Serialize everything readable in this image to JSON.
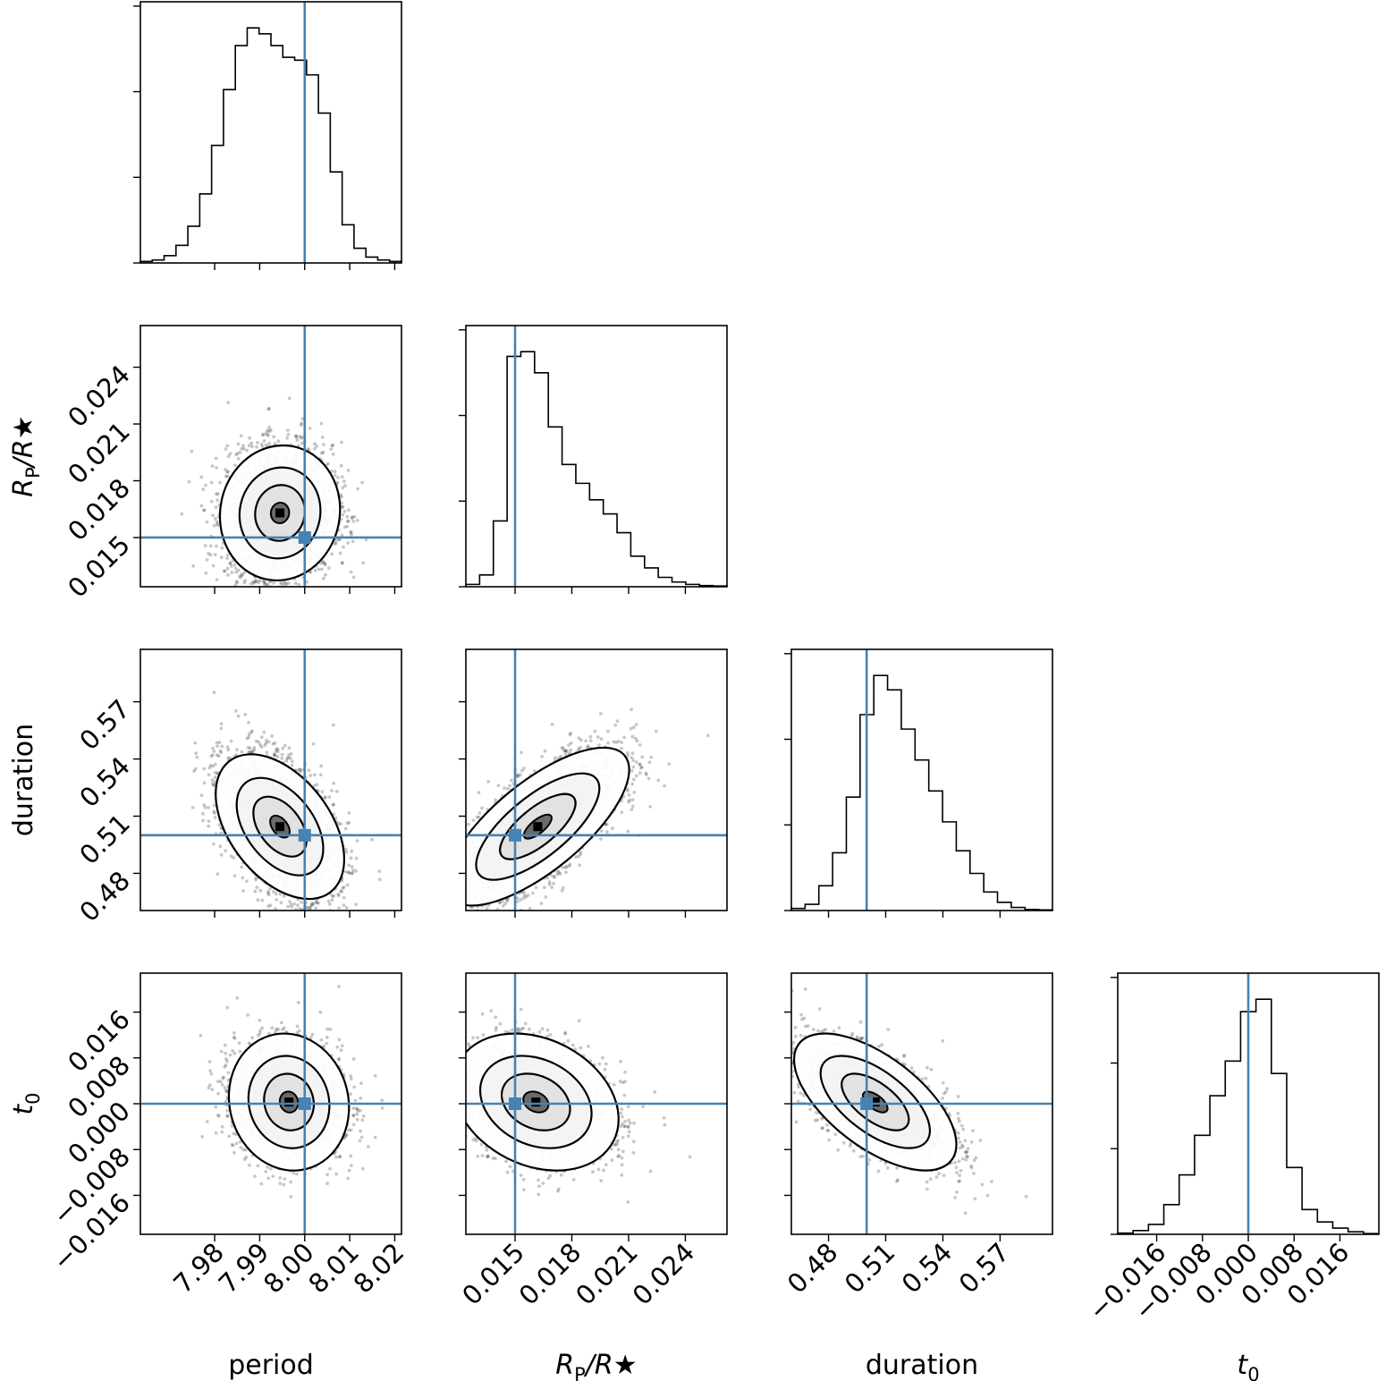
{
  "chart_data": {
    "type": "corner",
    "truth_color": "#4682b4",
    "parameters": [
      {
        "key": "period",
        "label": "period",
        "label_main": "period",
        "label_sub": "",
        "label_tail": "",
        "range": [
          7.9635,
          8.0215
        ],
        "ticks": [
          7.98,
          7.99,
          8.0,
          8.01,
          8.02
        ],
        "tick_labels": [
          "7.98",
          "7.99",
          "8.00",
          "8.01",
          "8.02"
        ],
        "truth": 8.0
      },
      {
        "key": "rp_rs",
        "label": "RP/R★",
        "label_main": "R",
        "label_sub": "P",
        "label_tail": "/R★",
        "range": [
          0.0124,
          0.0262
        ],
        "ticks": [
          0.015,
          0.018,
          0.021,
          0.024
        ],
        "tick_labels": [
          "0.015",
          "0.018",
          "0.021",
          "0.024"
        ],
        "truth": 0.015
      },
      {
        "key": "duration",
        "label": "duration",
        "label_main": "duration",
        "label_sub": "",
        "label_tail": "",
        "range": [
          0.4605,
          0.5975
        ],
        "ticks": [
          0.48,
          0.51,
          0.54,
          0.57
        ],
        "tick_labels": [
          "0.48",
          "0.51",
          "0.54",
          "0.57"
        ],
        "truth": 0.5
      },
      {
        "key": "t0",
        "label": "t0",
        "label_main": "t",
        "label_sub": "0",
        "label_tail": "",
        "range": [
          -0.0228,
          0.0228
        ],
        "ticks": [
          -0.016,
          -0.008,
          0.0,
          0.008,
          0.016
        ],
        "tick_labels": [
          "−0.016",
          "−0.008",
          "0.000",
          "0.008",
          "0.016"
        ],
        "truth": 0.0
      }
    ],
    "histograms": [
      {
        "param": "period",
        "counts": [
          1,
          2,
          5,
          12,
          25,
          47,
          80,
          118,
          148,
          160,
          156,
          148,
          140,
          138,
          128,
          102,
          62,
          26,
          10,
          4,
          2,
          1
        ]
      },
      {
        "param": "rp_rs",
        "counts": [
          1,
          5,
          28,
          98,
          100,
          91,
          68,
          52,
          44,
          37,
          31,
          23,
          13,
          8,
          4,
          2,
          1,
          0.5,
          0.3
        ]
      },
      {
        "param": "duration",
        "counts": [
          1,
          3,
          12,
          28,
          55,
          95,
          114,
          107,
          88,
          73,
          58,
          43,
          29,
          18,
          9,
          4,
          1.5,
          0.5,
          0.3
        ]
      },
      {
        "param": "t0",
        "counts": [
          0.5,
          1.5,
          4,
          12,
          24,
          40,
          56,
          70,
          90,
          95,
          65,
          27,
          10,
          5,
          2.5,
          1,
          0.3
        ]
      }
    ],
    "panels_2d": [
      {
        "x": "period",
        "y": "rp_rs",
        "peak": [
          7.9945,
          0.0163
        ],
        "sigma": [
          0.0058,
          0.00155
        ],
        "rho": 0.05,
        "skew_y": 0.00045
      },
      {
        "x": "period",
        "y": "duration",
        "peak": [
          7.9945,
          0.5045
        ],
        "sigma": [
          0.0062,
          0.0165
        ],
        "rho": -0.45,
        "skew_y": 0.005
      },
      {
        "x": "rp_rs",
        "y": "duration",
        "peak": [
          0.0162,
          0.5045
        ],
        "sigma": [
          0.0021,
          0.018
        ],
        "rho": 0.72,
        "skew_y": 0.005
      },
      {
        "x": "period",
        "y": "t0",
        "peak": [
          7.9965,
          0.0003
        ],
        "sigma": [
          0.0058,
          0.0052
        ],
        "rho": -0.08,
        "skew_y": -0.001
      },
      {
        "x": "rp_rs",
        "y": "t0",
        "peak": [
          0.0161,
          0.0003
        ],
        "sigma": [
          0.0019,
          0.0052
        ],
        "rho": -0.25,
        "skew_y": -0.001
      },
      {
        "x": "duration",
        "y": "t0",
        "peak": [
          0.5045,
          0.0003
        ],
        "sigma": [
          0.0185,
          0.0052
        ],
        "rho": -0.62,
        "skew_y": -0.001
      }
    ],
    "truths": {
      "period": 8.0,
      "rp_rs": 0.015,
      "duration": 0.5,
      "t0": 0.0
    }
  }
}
